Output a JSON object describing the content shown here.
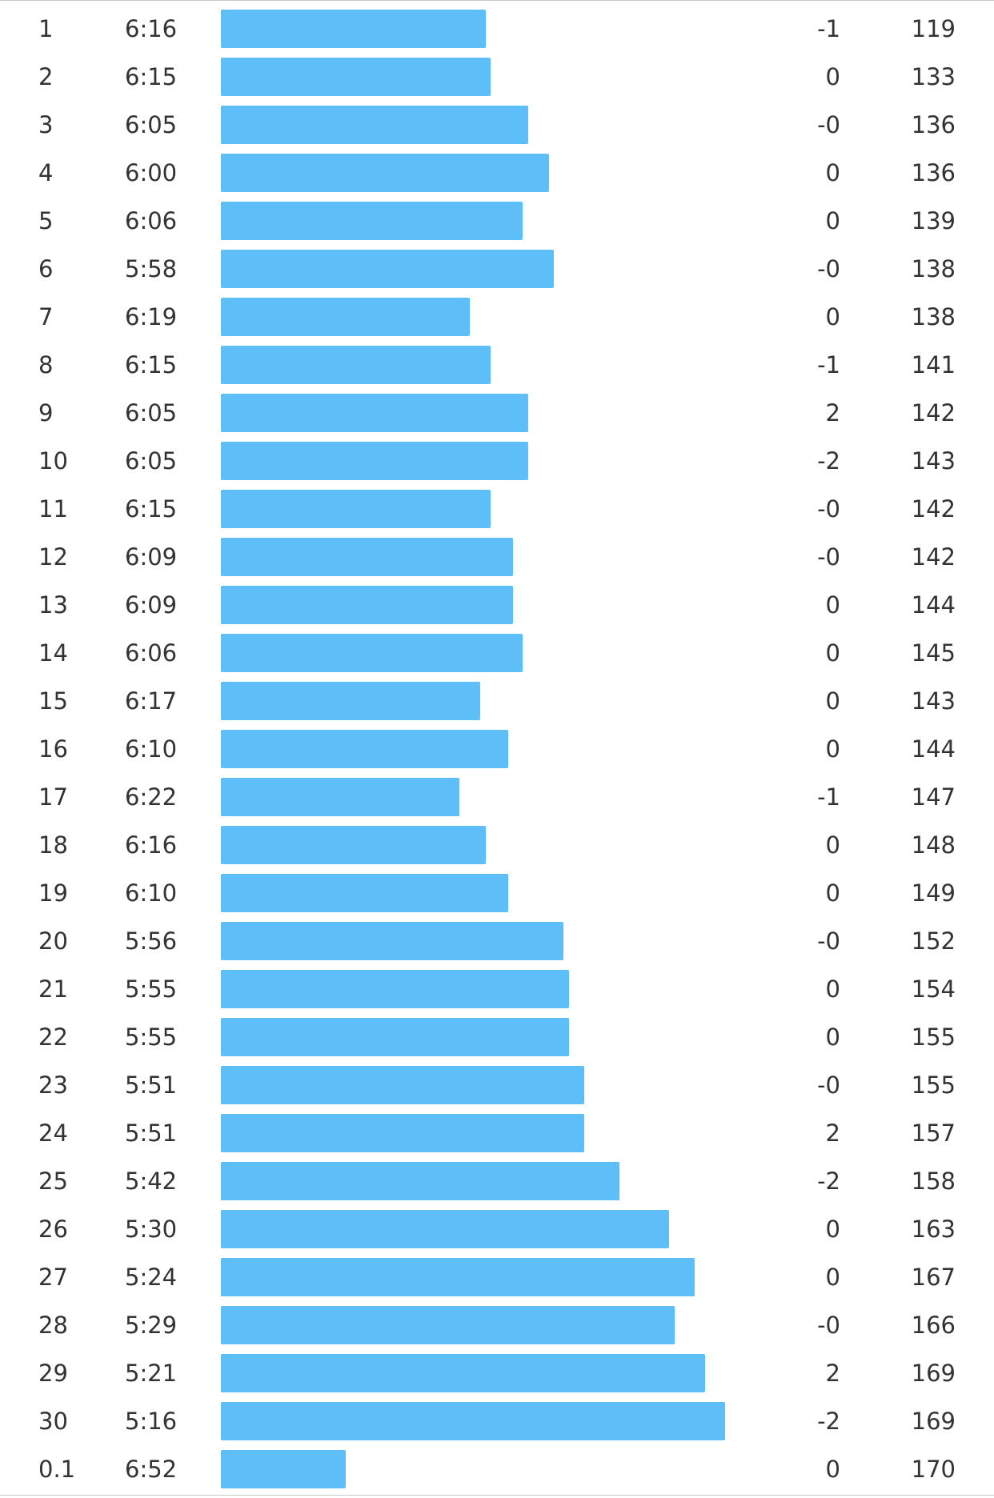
{
  "bar_color": "#5ebff8",
  "splits": [
    {
      "km": "1",
      "pace": "6:16",
      "elev": "-1",
      "hr": "119",
      "speed": 0.63
    },
    {
      "km": "2",
      "pace": "6:15",
      "elev": "0",
      "hr": "133",
      "speed": 0.642
    },
    {
      "km": "3",
      "pace": "6:05",
      "elev": "-0",
      "hr": "136",
      "speed": 0.732
    },
    {
      "km": "4",
      "pace": "6:00",
      "elev": "0",
      "hr": "136",
      "speed": 0.78
    },
    {
      "km": "5",
      "pace": "6:06",
      "elev": "0",
      "hr": "139",
      "speed": 0.718
    },
    {
      "km": "6",
      "pace": "5:58",
      "elev": "-0",
      "hr": "138",
      "speed": 0.793
    },
    {
      "km": "7",
      "pace": "6:19",
      "elev": "0",
      "hr": "138",
      "speed": 0.593
    },
    {
      "km": "8",
      "pace": "6:15",
      "elev": "-1",
      "hr": "141",
      "speed": 0.642
    },
    {
      "km": "9",
      "pace": "6:05",
      "elev": "2",
      "hr": "142",
      "speed": 0.732
    },
    {
      "km": "10",
      "pace": "6:05",
      "elev": "-2",
      "hr": "143",
      "speed": 0.732
    },
    {
      "km": "11",
      "pace": "6:15",
      "elev": "-0",
      "hr": "142",
      "speed": 0.642
    },
    {
      "km": "12",
      "pace": "6:09",
      "elev": "-0",
      "hr": "142",
      "speed": 0.695
    },
    {
      "km": "13",
      "pace": "6:09",
      "elev": "0",
      "hr": "144",
      "speed": 0.695
    },
    {
      "km": "14",
      "pace": "6:06",
      "elev": "0",
      "hr": "145",
      "speed": 0.718
    },
    {
      "km": "15",
      "pace": "6:17",
      "elev": "0",
      "hr": "143",
      "speed": 0.618
    },
    {
      "km": "16",
      "pace": "6:10",
      "elev": "0",
      "hr": "144",
      "speed": 0.683
    },
    {
      "km": "17",
      "pace": "6:22",
      "elev": "-1",
      "hr": "147",
      "speed": 0.568
    },
    {
      "km": "18",
      "pace": "6:16",
      "elev": "0",
      "hr": "148",
      "speed": 0.63
    },
    {
      "km": "19",
      "pace": "6:10",
      "elev": "0",
      "hr": "149",
      "speed": 0.683
    },
    {
      "km": "20",
      "pace": "5:56",
      "elev": "-0",
      "hr": "152",
      "speed": 0.815
    },
    {
      "km": "21",
      "pace": "5:55",
      "elev": "0",
      "hr": "154",
      "speed": 0.828
    },
    {
      "km": "22",
      "pace": "5:55",
      "elev": "0",
      "hr": "155",
      "speed": 0.828
    },
    {
      "km": "23",
      "pace": "5:51",
      "elev": "-0",
      "hr": "155",
      "speed": 0.865
    },
    {
      "km": "24",
      "pace": "5:51",
      "elev": "2",
      "hr": "157",
      "speed": 0.865
    },
    {
      "km": "25",
      "pace": "5:42",
      "elev": "-2",
      "hr": "158",
      "speed": 0.948
    },
    {
      "km": "26",
      "pace": "5:30",
      "elev": "0",
      "hr": "163",
      "speed": 1.067
    },
    {
      "km": "27",
      "pace": "5:24",
      "elev": "0",
      "hr": "167",
      "speed": 1.127
    },
    {
      "km": "28",
      "pace": "5:29",
      "elev": "-0",
      "hr": "166",
      "speed": 1.08
    },
    {
      "km": "29",
      "pace": "5:21",
      "elev": "2",
      "hr": "169",
      "speed": 1.152
    },
    {
      "km": "30",
      "pace": "5:16",
      "elev": "-2",
      "hr": "169",
      "speed": 1.2
    },
    {
      "km": "0.1",
      "pace": "6:52",
      "elev": "0",
      "hr": "170",
      "speed": 0.298
    }
  ]
}
